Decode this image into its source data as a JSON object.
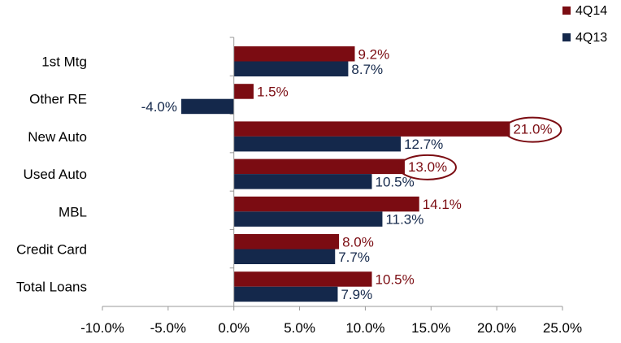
{
  "chart_data": {
    "type": "bar",
    "orientation": "horizontal",
    "categories": [
      "1st Mtg",
      "Other RE",
      "New Auto",
      "Used Auto",
      "MBL",
      "Credit Card",
      "Total Loans"
    ],
    "series": [
      {
        "name": "4Q14",
        "color": "#7B0C12",
        "values": [
          9.2,
          1.5,
          21.0,
          13.0,
          14.1,
          8.0,
          10.5
        ],
        "labels": [
          "9.2%",
          "1.5%",
          "21.0%",
          "13.0%",
          "14.1%",
          "8.0%",
          "10.5%"
        ]
      },
      {
        "name": "4Q13",
        "color": "#14284B",
        "values": [
          8.7,
          -4.0,
          12.7,
          10.5,
          11.3,
          7.7,
          7.9
        ],
        "labels": [
          "8.7%",
          "-4.0%",
          "12.7%",
          "10.5%",
          "11.3%",
          "7.7%",
          "7.9%"
        ]
      }
    ],
    "xlim": [
      -10,
      25
    ],
    "xticks": [
      -10,
      -5,
      0,
      5,
      10,
      15,
      20,
      25
    ],
    "xtick_labels": [
      "-10.0%",
      "-5.0%",
      "0.0%",
      "5.0%",
      "10.0%",
      "15.0%",
      "20.0%",
      "25.0%"
    ],
    "highlighted": [
      "New Auto 4Q14",
      "Used Auto 4Q14"
    ],
    "legend_position": "top-right",
    "grid": false,
    "title": "",
    "xlabel": "",
    "ylabel": ""
  }
}
